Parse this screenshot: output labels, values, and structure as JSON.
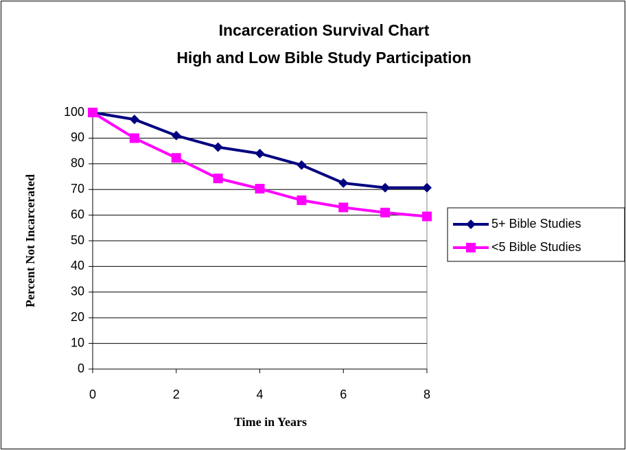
{
  "chart_data": {
    "type": "line",
    "title": [
      "Incarceration Survival Chart",
      "High and Low Bible Study Participation"
    ],
    "x_label": "Time in Years",
    "y_label": "Percent Not Incarcerated",
    "x": [
      0,
      1,
      2,
      3,
      4,
      5,
      6,
      7,
      8
    ],
    "series": [
      {
        "name": "5+ Bible Studies",
        "color": "#000080",
        "marker": "diamond",
        "values": [
          100,
          97.3,
          91,
          86.5,
          84,
          79.5,
          72.5,
          70.7,
          70.7
        ]
      },
      {
        "name": "<5 Bible Studies",
        "color": "#ff00ff",
        "marker": "square",
        "values": [
          100,
          90,
          82.3,
          74.3,
          70.3,
          65.8,
          63,
          61,
          59.5
        ]
      }
    ],
    "xlim": [
      0,
      8
    ],
    "xticks": [
      0,
      2,
      4,
      6,
      8
    ],
    "ylim": [
      0,
      100
    ],
    "yticks": [
      0,
      10,
      20,
      30,
      40,
      50,
      60,
      70,
      80,
      90,
      100
    ],
    "grid": true,
    "legend": "right"
  }
}
